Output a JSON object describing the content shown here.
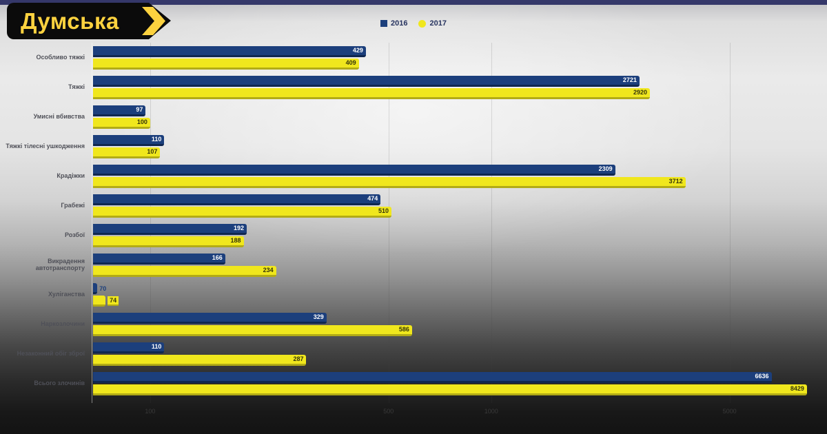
{
  "logo": {
    "text": "Думська"
  },
  "legend": {
    "items": [
      {
        "label": "2016",
        "color": "#1c3f7c",
        "shape": "square"
      },
      {
        "label": "2017",
        "color": "#f0e71d",
        "shape": "circle"
      }
    ]
  },
  "chart_data": {
    "type": "bar",
    "orientation": "horizontal",
    "title": "",
    "categories": [
      "Особливо тяжкі",
      "Тяжкі",
      "Умисні вбивства",
      "Тяжкі тілесні ушкодження",
      "Крадіжки",
      "Грабежі",
      "Розбої",
      "Викрадення автотранспорту",
      "Хуліганства",
      "Наркозлочини",
      "Незаконний обіг зброї",
      "Всього злочинів"
    ],
    "series": [
      {
        "name": "2016",
        "color": "#1c3f7c",
        "values": [
          429,
          2721,
          97,
          110,
          2309,
          474,
          192,
          166,
          70,
          329,
          110,
          6636
        ]
      },
      {
        "name": "2017",
        "color": "#f0e71d",
        "values": [
          409,
          2920,
          100,
          107,
          3712,
          510,
          188,
          234,
          74,
          586,
          287,
          8429
        ]
      }
    ],
    "x_axis": {
      "scale": "log",
      "min": 68,
      "max": 9000,
      "ticks": [
        100,
        500,
        1000,
        5000
      ]
    },
    "grid": true,
    "legend_position": "top"
  }
}
